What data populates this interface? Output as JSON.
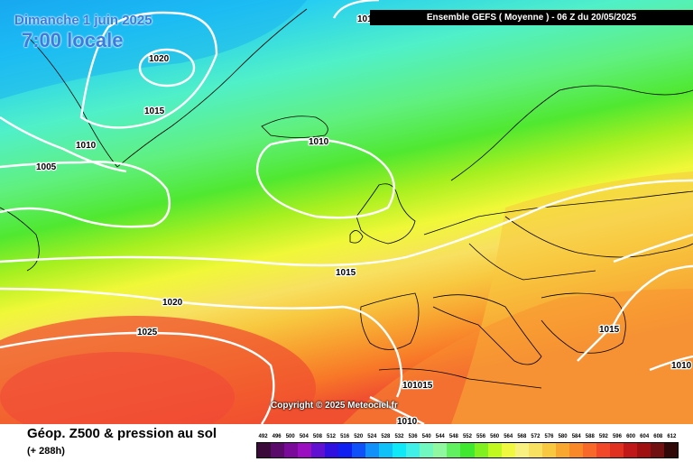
{
  "map": {
    "date_label": "Dimanche 1 juin 2025",
    "time_label": "7:00 locale",
    "header": "Ensemble GEFS  ( Moyenne )  -  06 Z du 20/05/2025",
    "copyright": "Copyright © 2025 Meteociel.fr",
    "footer_title": "Géop. Z500 & pression au sol",
    "footer_lead": "(+ 288h)",
    "isobars": [
      "1020",
      "1015",
      "1010",
      "1010",
      "1005",
      "1015",
      "1020",
      "1025",
      "1015",
      "1010",
      "101015",
      "1010",
      "1010"
    ]
  },
  "scale": {
    "labels": [
      "492",
      "496",
      "500",
      "504",
      "508",
      "512",
      "516",
      "520",
      "524",
      "528",
      "532",
      "536",
      "540",
      "544",
      "548",
      "552",
      "556",
      "560",
      "564",
      "568",
      "572",
      "576",
      "580",
      "584",
      "588",
      "592",
      "596",
      "600",
      "604",
      "608",
      "612"
    ],
    "colors": [
      "#3a0a3a",
      "#5a0a6a",
      "#7a0a9a",
      "#9a10c0",
      "#6010d0",
      "#3010e0",
      "#1020f0",
      "#1050f8",
      "#1090f8",
      "#10c0f8",
      "#10e8f8",
      "#40f0e8",
      "#70f8c0",
      "#90f8a0",
      "#60f060",
      "#40e830",
      "#80f020",
      "#c0f820",
      "#f0f840",
      "#f8f080",
      "#f8e060",
      "#f8c840",
      "#f8a830",
      "#f88828",
      "#f86828",
      "#f04828",
      "#e03020",
      "#c01818",
      "#a01010",
      "#701010",
      "#300808"
    ]
  }
}
